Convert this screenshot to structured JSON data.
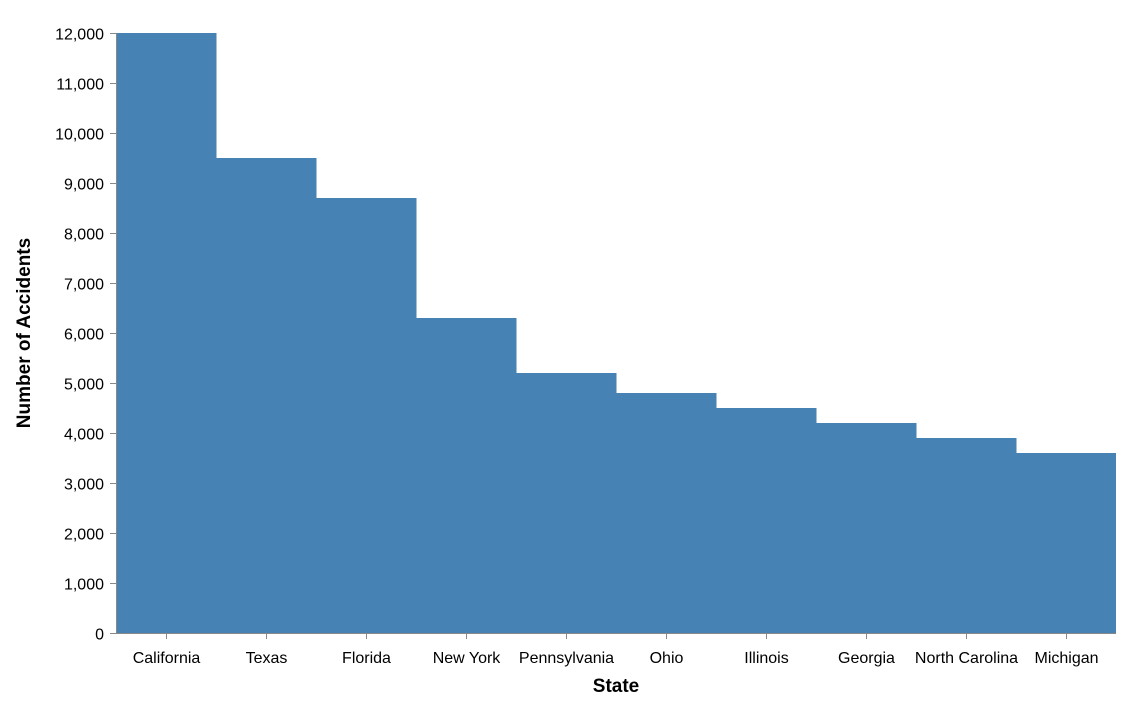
{
  "chart_data": {
    "type": "area",
    "interpolation": "step",
    "categories": [
      "California",
      "Texas",
      "Florida",
      "New York",
      "Pennsylvania",
      "Ohio",
      "Illinois",
      "Georgia",
      "North Carolina",
      "Michigan"
    ],
    "values": [
      12000,
      9500,
      8700,
      6300,
      5200,
      4800,
      4500,
      4200,
      3900,
      3600
    ],
    "title": "",
    "xlabel": "State",
    "ylabel": "Number of Accidents",
    "ylim": [
      0,
      12000
    ],
    "yticks": [
      "0",
      "1,000",
      "2,000",
      "3,000",
      "4,000",
      "5,000",
      "6,000",
      "7,000",
      "8,000",
      "9,000",
      "10,000",
      "11,000",
      "12,000"
    ],
    "grid": false,
    "legend": "none",
    "color": "#4682b4"
  }
}
